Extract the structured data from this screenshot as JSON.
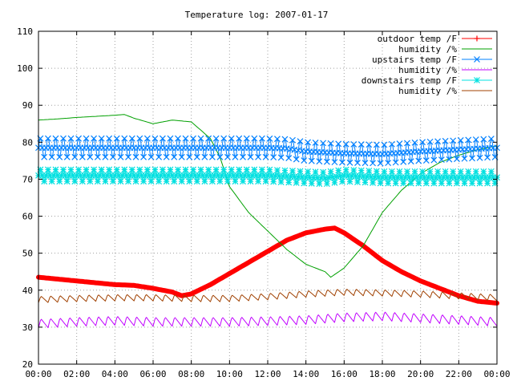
{
  "chart_data": {
    "type": "line",
    "title": "Temperature log: 2007-01-17",
    "xlabel": "",
    "ylabel": "",
    "x_range_hours": [
      0,
      24
    ],
    "ylim": [
      20,
      110
    ],
    "x_tick_labels": [
      "00:00",
      "02:00",
      "04:00",
      "06:00",
      "08:00",
      "10:00",
      "12:00",
      "14:00",
      "16:00",
      "18:00",
      "20:00",
      "22:00",
      "00:00"
    ],
    "y_ticks": [
      20,
      30,
      40,
      50,
      60,
      70,
      80,
      90,
      100,
      110
    ],
    "grid": true,
    "legend_position": "top-right",
    "series": [
      {
        "name": "outdoor temp /F",
        "color": "#ff0000",
        "marker": "plus",
        "style": "thick",
        "x": [
          0,
          1,
          2,
          3,
          4,
          5,
          6,
          7,
          7.5,
          8,
          9,
          10,
          11,
          12,
          13,
          14,
          15,
          15.5,
          16,
          17,
          18,
          19,
          20,
          21,
          22,
          23,
          24
        ],
        "y": [
          43.5,
          43,
          42.5,
          42,
          41.5,
          41.3,
          40.5,
          39.5,
          38.5,
          39,
          41.5,
          44.5,
          47.5,
          50.5,
          53.5,
          55.5,
          56.5,
          56.8,
          55.5,
          52,
          48,
          45,
          42.5,
          40.5,
          38.5,
          37,
          36.5
        ]
      },
      {
        "name": "humidity /%",
        "color": "#00a000",
        "marker": "none",
        "style": "thin",
        "x": [
          0,
          1,
          2,
          3,
          4,
          4.5,
          5,
          6,
          7,
          8,
          9,
          9.5,
          10,
          11,
          12,
          13,
          14,
          15,
          15.3,
          16,
          17,
          18,
          19,
          20,
          21,
          22,
          23,
          24
        ],
        "y": [
          86,
          86.3,
          86.7,
          87,
          87.3,
          87.5,
          86.5,
          85,
          86,
          85.5,
          81,
          76,
          68,
          61,
          56,
          51,
          47,
          45,
          43.5,
          46,
          52,
          61,
          67,
          71.5,
          74.5,
          76.5,
          78,
          79
        ]
      },
      {
        "name": "upstairs temp /F",
        "color": "#0080ff",
        "marker": "cross",
        "style": "oscillating",
        "x": [
          0,
          2,
          4,
          6,
          8,
          10,
          12,
          13,
          14,
          16,
          18,
          20,
          22,
          24
        ],
        "y": [
          78.5,
          78.5,
          78.5,
          78.5,
          78.5,
          78.5,
          78.5,
          78.3,
          77.5,
          77,
          76.8,
          77.5,
          78,
          78.5
        ],
        "amplitude": 2.5,
        "cycle_hours": 0.4
      },
      {
        "name": "humidity /%",
        "color": "#c000ff",
        "marker": "none",
        "style": "sawtooth",
        "x": [
          0,
          2,
          4,
          6,
          8,
          10,
          12,
          14,
          16,
          18,
          20,
          22,
          24
        ],
        "y": [
          31,
          31.5,
          31.8,
          31.5,
          31.5,
          31.5,
          31.7,
          32,
          32.7,
          33,
          32.5,
          32,
          31.5
        ],
        "amplitude": 2.5,
        "cycle_hours": 0.5
      },
      {
        "name": "downstairs temp /F",
        "color": "#00e0e0",
        "marker": "star",
        "style": "oscillating",
        "x": [
          0,
          2,
          4,
          6,
          8,
          10,
          12,
          14,
          15,
          16,
          18,
          20,
          22,
          24
        ],
        "y": [
          71,
          71,
          71,
          71,
          71,
          71,
          71,
          70.5,
          70.3,
          71,
          70.5,
          70.5,
          70.5,
          70.5
        ],
        "amplitude": 1.6,
        "cycle_hours": 0.4
      },
      {
        "name": "humidity /%",
        "color": "#a04000",
        "marker": "none",
        "style": "sawtooth",
        "x": [
          0,
          2,
          4,
          6,
          8,
          10,
          12,
          14,
          16,
          18,
          20,
          22,
          24
        ],
        "y": [
          37.5,
          37.8,
          38,
          38,
          37.8,
          37.8,
          38.3,
          39,
          39.5,
          39.3,
          39,
          38.5,
          38
        ],
        "amplitude": 1.8,
        "cycle_hours": 0.5
      }
    ]
  }
}
